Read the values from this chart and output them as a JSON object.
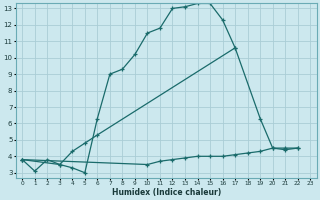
{
  "xlabel": "Humidex (Indice chaleur)",
  "background_color": "#cce8ee",
  "grid_color": "#aacdd6",
  "line_color": "#1a6b6b",
  "xlim": [
    -0.5,
    23.5
  ],
  "ylim": [
    2.7,
    13.3
  ],
  "xticks": [
    0,
    1,
    2,
    3,
    4,
    5,
    6,
    7,
    8,
    9,
    10,
    11,
    12,
    13,
    14,
    15,
    16,
    17,
    18,
    19,
    20,
    21,
    22,
    23
  ],
  "yticks": [
    3,
    4,
    5,
    6,
    7,
    8,
    9,
    10,
    11,
    12,
    13
  ],
  "series": [
    {
      "x": [
        0,
        1,
        2,
        3,
        4,
        5,
        6,
        7,
        8,
        9,
        10,
        11,
        12,
        13,
        14,
        15,
        16,
        17
      ],
      "y": [
        3.8,
        3.1,
        3.8,
        3.5,
        3.3,
        3.0,
        6.3,
        9.0,
        9.3,
        10.2,
        11.5,
        11.8,
        13.0,
        13.1,
        13.3,
        13.3,
        12.3,
        10.6
      ]
    },
    {
      "x": [
        0,
        3,
        4,
        5,
        6,
        17,
        19,
        20,
        21,
        22
      ],
      "y": [
        3.8,
        3.5,
        4.3,
        4.8,
        5.3,
        10.6,
        6.3,
        4.5,
        4.4,
        4.5
      ]
    },
    {
      "x": [
        0,
        10,
        11,
        12,
        13,
        14,
        15,
        16,
        17,
        18,
        19,
        20,
        21,
        22
      ],
      "y": [
        3.8,
        3.5,
        3.7,
        3.8,
        3.9,
        4.0,
        4.0,
        4.0,
        4.1,
        4.2,
        4.3,
        4.5,
        4.5,
        4.5
      ]
    }
  ]
}
